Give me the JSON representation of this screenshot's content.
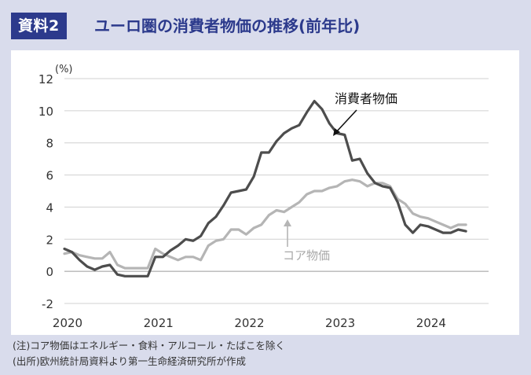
{
  "header": {
    "badge": "資料2",
    "title": "ユーロ圏の消費者物価の推移(前年比)"
  },
  "notes": [
    "(注)コア物価はエネルギー・食料・アルコール・たばこを除く",
    "(出所)欧州統計局資料より第一生命経済研究所が作成"
  ],
  "colors": {
    "headline": "#4d4d4d",
    "core": "#b5b5b5",
    "accent": "#2c3a8c",
    "background": "#d9dcec"
  },
  "chart_data": {
    "type": "line",
    "unit_label": "(%)",
    "ylim": [
      -2,
      12
    ],
    "yticks": [
      "-2",
      "0",
      "2",
      "4",
      "6",
      "8",
      "10",
      "12"
    ],
    "xlim": [
      2020.0,
      2024.6667
    ],
    "xticks": [
      "2020",
      "2021",
      "2022",
      "2023",
      "2024"
    ],
    "grid": true,
    "series": [
      {
        "name": "消費者物価",
        "color": "#4d4d4d",
        "x": [
          "2020-01",
          "2020-02",
          "2020-03",
          "2020-04",
          "2020-05",
          "2020-06",
          "2020-07",
          "2020-08",
          "2020-09",
          "2020-10",
          "2020-11",
          "2020-12",
          "2021-01",
          "2021-02",
          "2021-03",
          "2021-04",
          "2021-05",
          "2021-06",
          "2021-07",
          "2021-08",
          "2021-09",
          "2021-10",
          "2021-11",
          "2021-12",
          "2022-01",
          "2022-02",
          "2022-03",
          "2022-04",
          "2022-05",
          "2022-06",
          "2022-07",
          "2022-08",
          "2022-09",
          "2022-10",
          "2022-11",
          "2022-12",
          "2023-01",
          "2023-02",
          "2023-03",
          "2023-04",
          "2023-05",
          "2023-06",
          "2023-07",
          "2023-08",
          "2023-09",
          "2023-10",
          "2023-11",
          "2023-12",
          "2024-01",
          "2024-02",
          "2024-03",
          "2024-04",
          "2024-05",
          "2024-06"
        ],
        "values": [
          1.4,
          1.2,
          0.7,
          0.3,
          0.1,
          0.3,
          0.4,
          -0.2,
          -0.3,
          -0.3,
          -0.3,
          -0.3,
          0.9,
          0.9,
          1.3,
          1.6,
          2.0,
          1.9,
          2.2,
          3.0,
          3.4,
          4.1,
          4.9,
          5.0,
          5.1,
          5.9,
          7.4,
          7.4,
          8.1,
          8.6,
          8.9,
          9.1,
          9.9,
          10.6,
          10.1,
          9.2,
          8.6,
          8.5,
          6.9,
          7.0,
          6.1,
          5.5,
          5.3,
          5.2,
          4.3,
          2.9,
          2.4,
          2.9,
          2.8,
          2.6,
          2.4,
          2.4,
          2.6,
          2.5
        ]
      },
      {
        "name": "コア物価",
        "color": "#b5b5b5",
        "x": [
          "2020-01",
          "2020-02",
          "2020-03",
          "2020-04",
          "2020-05",
          "2020-06",
          "2020-07",
          "2020-08",
          "2020-09",
          "2020-10",
          "2020-11",
          "2020-12",
          "2021-01",
          "2021-02",
          "2021-03",
          "2021-04",
          "2021-05",
          "2021-06",
          "2021-07",
          "2021-08",
          "2021-09",
          "2021-10",
          "2021-11",
          "2021-12",
          "2022-01",
          "2022-02",
          "2022-03",
          "2022-04",
          "2022-05",
          "2022-06",
          "2022-07",
          "2022-08",
          "2022-09",
          "2022-10",
          "2022-11",
          "2022-12",
          "2023-01",
          "2023-02",
          "2023-03",
          "2023-04",
          "2023-05",
          "2023-06",
          "2023-07",
          "2023-08",
          "2023-09",
          "2023-10",
          "2023-11",
          "2023-12",
          "2024-01",
          "2024-02",
          "2024-03",
          "2024-04",
          "2024-05",
          "2024-06"
        ],
        "values": [
          1.1,
          1.2,
          1.0,
          0.9,
          0.8,
          0.8,
          1.2,
          0.4,
          0.2,
          0.2,
          0.2,
          0.2,
          1.4,
          1.1,
          0.9,
          0.7,
          0.9,
          0.9,
          0.7,
          1.6,
          1.9,
          2.0,
          2.6,
          2.6,
          2.3,
          2.7,
          2.9,
          3.5,
          3.8,
          3.7,
          4.0,
          4.3,
          4.8,
          5.0,
          5.0,
          5.2,
          5.3,
          5.6,
          5.7,
          5.6,
          5.3,
          5.5,
          5.5,
          5.3,
          4.5,
          4.2,
          3.6,
          3.4,
          3.3,
          3.1,
          2.9,
          2.7,
          2.9,
          2.9
        ]
      }
    ],
    "annotations": [
      {
        "text": "消費者物価",
        "series": 0
      },
      {
        "text": "コア物価",
        "series": 1
      }
    ]
  }
}
